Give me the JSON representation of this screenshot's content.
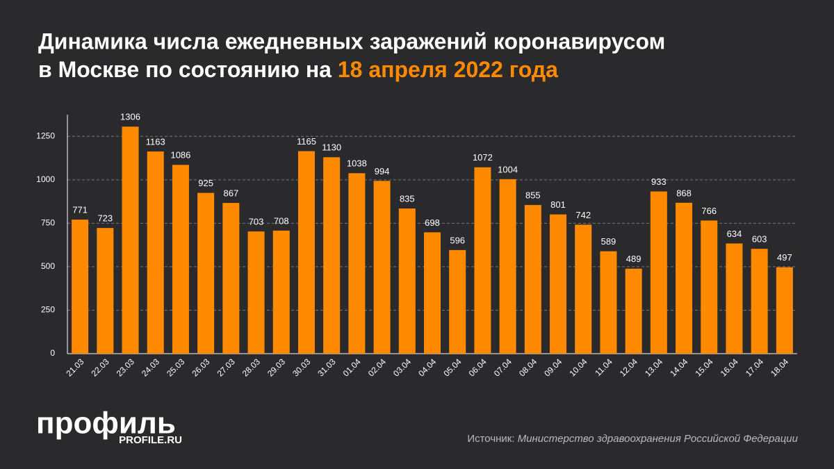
{
  "chart_data": {
    "type": "bar",
    "title": "Динамика числа ежедневных заражений коронавирусом",
    "title_line2": "в Москве по состоянию на",
    "title_highlight": "18 апреля 2022 года",
    "categories": [
      "21.03",
      "22.03",
      "23.03",
      "24.03",
      "25.03",
      "26.03",
      "27.03",
      "28.03",
      "29.03",
      "30.03",
      "31.03",
      "01.04",
      "02.04",
      "03.04",
      "04.04",
      "05.04",
      "06.04",
      "07.04",
      "08.04",
      "09.04",
      "10.04",
      "11.04",
      "12.04",
      "13.04",
      "14.04",
      "15.04",
      "16.04",
      "17.04",
      "18.04"
    ],
    "values": [
      771,
      723,
      1306,
      1163,
      1086,
      925,
      867,
      703,
      708,
      1165,
      1130,
      1038,
      994,
      835,
      698,
      596,
      1072,
      1004,
      855,
      801,
      742,
      589,
      489,
      933,
      868,
      766,
      634,
      603,
      497
    ],
    "color": "#ff8a00",
    "ylim": [
      0,
      1375
    ],
    "yticks": [
      0,
      250,
      500,
      750,
      1000,
      1250
    ],
    "grid": true,
    "source_label": "Источник:",
    "source": "Министерство здравоохранения Российской Федерации",
    "logo": "профиль",
    "logo_sub": "PROFILE.RU"
  }
}
